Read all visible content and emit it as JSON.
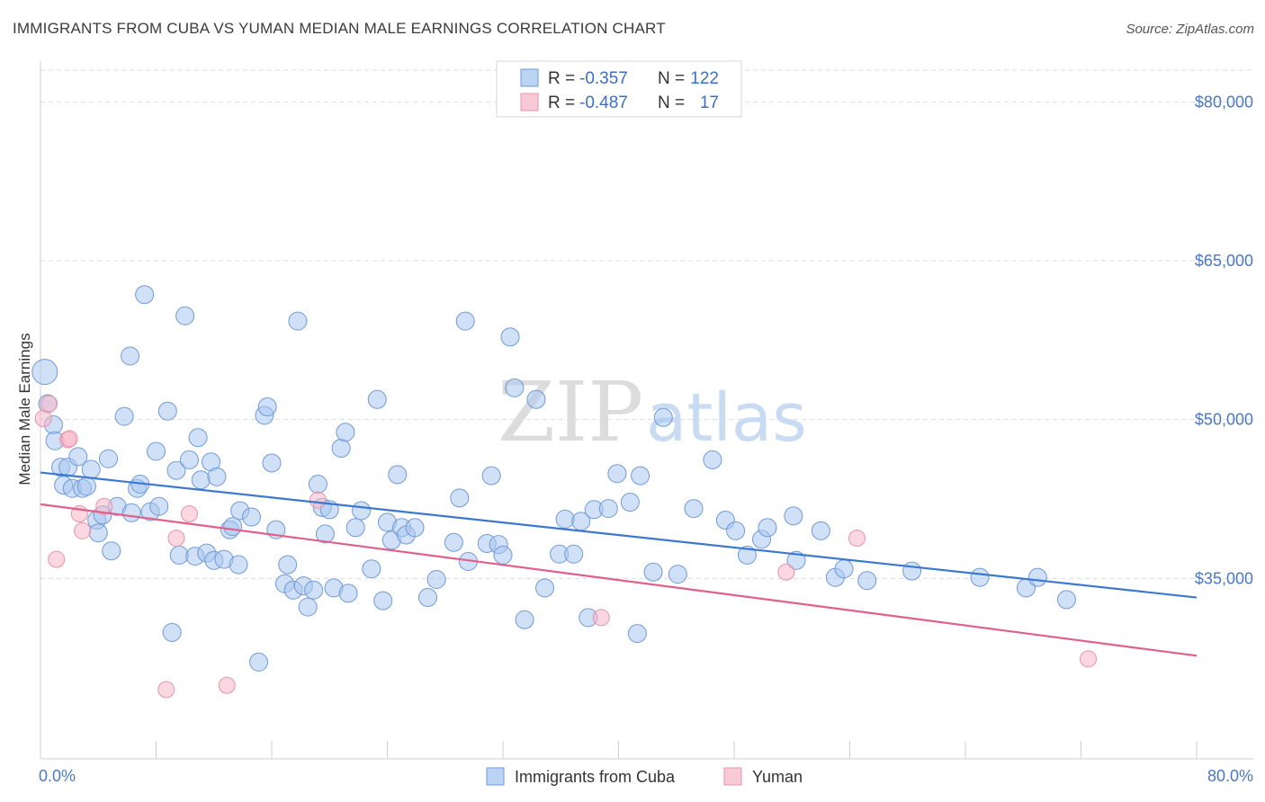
{
  "title": "IMMIGRANTS FROM CUBA VS YUMAN MEDIAN MALE EARNINGS CORRELATION CHART",
  "source": "Source: ZipAtlas.com",
  "watermark": {
    "zip": "ZIP",
    "atlas": "atlas"
  },
  "colors": {
    "blue_fill": "#a9c7ee",
    "blue_stroke": "#6f9ad8",
    "blue_line": "#3b78d0",
    "pink_fill": "#f5b7c8",
    "pink_stroke": "#e892ab",
    "pink_line": "#e0608a",
    "grid": "#dddddd",
    "axis_text": "#4a78c4"
  },
  "legend": {
    "rows": [
      {
        "r_label": "R =",
        "r_value": "-0.357",
        "n_label": "N =",
        "n_value": "122"
      },
      {
        "r_label": "R =",
        "r_value": "-0.487",
        "n_label": "N =",
        "n_value": "17"
      }
    ]
  },
  "bottom_legend": [
    "Immigrants from Cuba",
    "Yuman"
  ],
  "chart_data": {
    "type": "scatter",
    "title": "IMMIGRANTS FROM CUBA VS YUMAN MEDIAN MALE EARNINGS CORRELATION CHART",
    "xlabel": "",
    "ylabel": "Median Male Earnings",
    "xlim": [
      0,
      80
    ],
    "ylim": [
      20000,
      83000
    ],
    "x_tick_labels": [
      "0.0%",
      "80.0%"
    ],
    "y_ticks": [
      35000,
      50000,
      65000,
      80000
    ],
    "y_tick_labels": [
      "$35,000",
      "$50,000",
      "$65,000",
      "$80,000"
    ],
    "grid": true,
    "legend_position": "top-center",
    "series": [
      {
        "name": "Immigrants from Cuba",
        "r": -0.357,
        "n": 122,
        "trend": {
          "x": [
            0,
            80
          ],
          "y": [
            45000,
            33200
          ]
        },
        "points": [
          [
            0.3,
            54500,
            14
          ],
          [
            0.5,
            51500,
            10
          ],
          [
            0.9,
            49500,
            10
          ],
          [
            1.0,
            48000,
            10
          ],
          [
            1.4,
            45500,
            10
          ],
          [
            1.6,
            43800,
            10
          ],
          [
            1.9,
            45500,
            10
          ],
          [
            2.2,
            43500,
            10
          ],
          [
            2.6,
            46500,
            10
          ],
          [
            2.9,
            43500,
            10
          ],
          [
            3.2,
            43700,
            10
          ],
          [
            3.5,
            45300,
            10
          ],
          [
            3.9,
            40500,
            10
          ],
          [
            4.0,
            39300,
            10
          ],
          [
            4.3,
            41000,
            10
          ],
          [
            4.7,
            46300,
            10
          ],
          [
            4.9,
            37600,
            10
          ],
          [
            5.3,
            41800,
            10
          ],
          [
            5.8,
            50300,
            10
          ],
          [
            6.2,
            56000,
            10
          ],
          [
            6.3,
            41200,
            10
          ],
          [
            6.7,
            43500,
            10
          ],
          [
            6.9,
            43900,
            10
          ],
          [
            7.2,
            61800,
            10
          ],
          [
            7.6,
            41300,
            10
          ],
          [
            8.0,
            47000,
            10
          ],
          [
            8.2,
            41800,
            10
          ],
          [
            8.8,
            50800,
            10
          ],
          [
            9.1,
            29900,
            10
          ],
          [
            9.4,
            45200,
            10
          ],
          [
            9.6,
            37200,
            10
          ],
          [
            10.0,
            59800,
            10
          ],
          [
            10.3,
            46200,
            10
          ],
          [
            10.7,
            37100,
            10
          ],
          [
            10.9,
            48300,
            10
          ],
          [
            11.1,
            44300,
            10
          ],
          [
            11.5,
            37400,
            10
          ],
          [
            11.8,
            46000,
            10
          ],
          [
            12.0,
            36700,
            10
          ],
          [
            12.2,
            44600,
            10
          ],
          [
            12.7,
            36800,
            10
          ],
          [
            13.1,
            39600,
            10
          ],
          [
            13.3,
            39900,
            10
          ],
          [
            13.7,
            36300,
            10
          ],
          [
            13.8,
            41400,
            10
          ],
          [
            14.6,
            40800,
            10
          ],
          [
            15.1,
            27100,
            10
          ],
          [
            15.5,
            50400,
            10
          ],
          [
            15.7,
            51200,
            10
          ],
          [
            16.0,
            45900,
            10
          ],
          [
            16.3,
            39600,
            10
          ],
          [
            16.9,
            34500,
            10
          ],
          [
            17.1,
            36300,
            10
          ],
          [
            17.5,
            33900,
            10
          ],
          [
            17.8,
            59300,
            10
          ],
          [
            18.2,
            34300,
            10
          ],
          [
            18.5,
            32300,
            10
          ],
          [
            18.9,
            33900,
            10
          ],
          [
            19.2,
            43900,
            10
          ],
          [
            19.5,
            41700,
            10
          ],
          [
            19.7,
            39200,
            10
          ],
          [
            20.0,
            41500,
            10
          ],
          [
            20.3,
            34100,
            10
          ],
          [
            20.8,
            47300,
            10
          ],
          [
            21.1,
            48800,
            10
          ],
          [
            21.3,
            33600,
            10
          ],
          [
            21.8,
            39800,
            10
          ],
          [
            22.2,
            41400,
            10
          ],
          [
            22.9,
            35900,
            10
          ],
          [
            23.3,
            51900,
            10
          ],
          [
            23.7,
            32900,
            10
          ],
          [
            24.0,
            40300,
            10
          ],
          [
            24.3,
            38600,
            10
          ],
          [
            24.7,
            44800,
            10
          ],
          [
            25.0,
            39800,
            10
          ],
          [
            25.3,
            39100,
            10
          ],
          [
            25.9,
            39800,
            10
          ],
          [
            26.8,
            33200,
            10
          ],
          [
            27.4,
            34900,
            10
          ],
          [
            28.6,
            38400,
            10
          ],
          [
            29.0,
            42600,
            10
          ],
          [
            29.4,
            59300,
            10
          ],
          [
            29.6,
            36600,
            10
          ],
          [
            30.9,
            38300,
            10
          ],
          [
            31.2,
            44700,
            10
          ],
          [
            31.7,
            38200,
            10
          ],
          [
            32.0,
            37200,
            10
          ],
          [
            32.5,
            57800,
            10
          ],
          [
            32.8,
            53000,
            10
          ],
          [
            33.5,
            31100,
            10
          ],
          [
            34.3,
            51900,
            10
          ],
          [
            34.9,
            34100,
            10
          ],
          [
            35.9,
            37300,
            10
          ],
          [
            36.3,
            40600,
            10
          ],
          [
            36.9,
            37300,
            10
          ],
          [
            37.4,
            40400,
            10
          ],
          [
            37.9,
            31300,
            10
          ],
          [
            38.3,
            41500,
            10
          ],
          [
            39.3,
            41600,
            10
          ],
          [
            39.9,
            44900,
            10
          ],
          [
            40.8,
            42200,
            10
          ],
          [
            41.3,
            29800,
            10
          ],
          [
            41.5,
            44700,
            10
          ],
          [
            42.4,
            35600,
            10
          ],
          [
            43.1,
            50200,
            10
          ],
          [
            44.1,
            35400,
            10
          ],
          [
            45.2,
            41600,
            10
          ],
          [
            46.5,
            46200,
            10
          ],
          [
            47.4,
            40500,
            10
          ],
          [
            48.1,
            39500,
            10
          ],
          [
            48.9,
            37200,
            10
          ],
          [
            49.9,
            38700,
            10
          ],
          [
            50.3,
            39800,
            10
          ],
          [
            52.1,
            40900,
            10
          ],
          [
            52.3,
            36700,
            10
          ],
          [
            54.0,
            39500,
            10
          ],
          [
            55.0,
            35100,
            10
          ],
          [
            55.6,
            35900,
            10
          ],
          [
            57.2,
            34800,
            10
          ],
          [
            60.3,
            35700,
            10
          ],
          [
            65.0,
            35100,
            10
          ],
          [
            68.2,
            34100,
            10
          ],
          [
            69.0,
            35100,
            10
          ],
          [
            71.0,
            33000,
            10
          ]
        ]
      },
      {
        "name": "Yuman",
        "r": -0.487,
        "n": 17,
        "trend": {
          "x": [
            0,
            80
          ],
          "y": [
            42000,
            27700
          ]
        },
        "points": [
          [
            0.2,
            50100
          ],
          [
            0.6,
            51500
          ],
          [
            1.1,
            36800
          ],
          [
            1.9,
            48100
          ],
          [
            2.0,
            48200
          ],
          [
            2.7,
            41100
          ],
          [
            2.9,
            39500
          ],
          [
            4.4,
            41800
          ],
          [
            8.7,
            24500
          ],
          [
            9.4,
            38800
          ],
          [
            10.3,
            41100
          ],
          [
            12.9,
            24900
          ],
          [
            19.2,
            42400
          ],
          [
            38.8,
            31300
          ],
          [
            51.6,
            35600
          ],
          [
            56.5,
            38800
          ],
          [
            72.5,
            27400
          ]
        ]
      }
    ]
  }
}
